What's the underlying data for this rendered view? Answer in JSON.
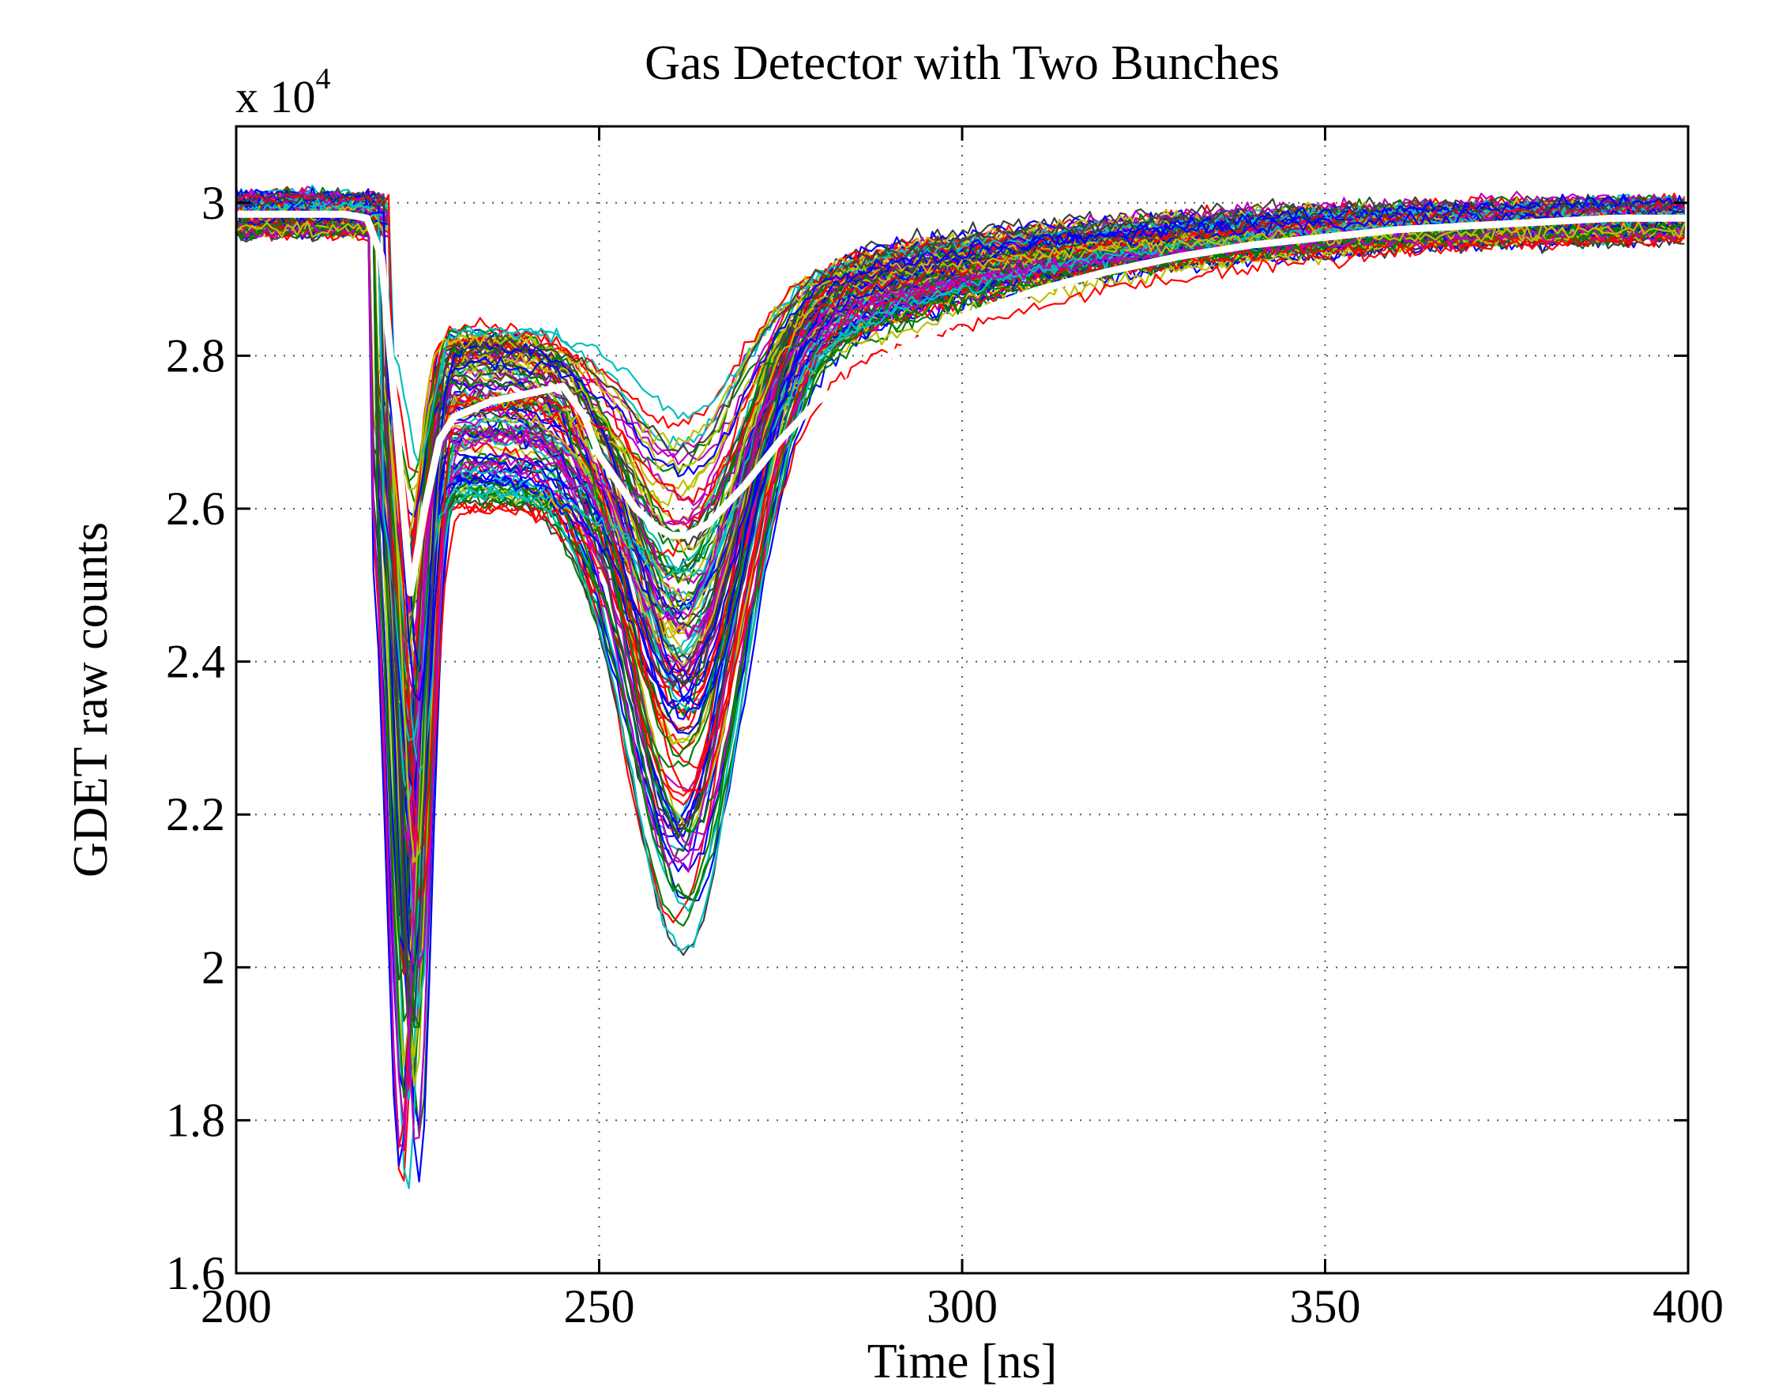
{
  "chart_data": {
    "type": "line",
    "title": "Gas Detector with Two Bunches",
    "xlabel": "Time [ns]",
    "ylabel": "GDET raw counts",
    "y_scale_label": {
      "base": "x 10",
      "exponent": "4"
    },
    "xlim": [
      200,
      400
    ],
    "ylim": [
      1.6,
      3.1
    ],
    "x_ticks": [
      200,
      250,
      300,
      350,
      400
    ],
    "x_tick_labels": [
      "200",
      "250",
      "300",
      "350",
      "400"
    ],
    "y_ticks": [
      1.6,
      1.8,
      2.0,
      2.2,
      2.4,
      2.6,
      2.8,
      3.0
    ],
    "y_tick_labels": [
      "1.6",
      "1.8",
      "2",
      "2.2",
      "2.4",
      "2.6",
      "2.8",
      "3"
    ],
    "grid": true,
    "grid_style": "dotted",
    "legend": "none",
    "shot_trace_count": 120,
    "shot_colors": [
      "#0000ff",
      "#008000",
      "#ff0000",
      "#00bfbf",
      "#bf00bf",
      "#bfbf00",
      "#404040"
    ],
    "mean_trace_color": "#ffffff",
    "series": [
      {
        "role": "mean",
        "x": [
          200,
          215,
          218,
          220,
          222,
          224,
          226,
          228,
          230,
          235,
          240,
          245,
          248,
          250,
          255,
          258,
          260,
          262,
          265,
          270,
          275,
          280,
          290,
          300,
          310,
          320,
          330,
          340,
          350,
          360,
          370,
          380,
          390,
          400
        ],
        "y": [
          2.985,
          2.985,
          2.98,
          2.93,
          2.72,
          2.49,
          2.6,
          2.69,
          2.72,
          2.74,
          2.75,
          2.76,
          2.72,
          2.67,
          2.6,
          2.575,
          2.565,
          2.565,
          2.58,
          2.63,
          2.69,
          2.74,
          2.8,
          2.85,
          2.885,
          2.91,
          2.93,
          2.945,
          2.955,
          2.965,
          2.97,
          2.975,
          2.98,
          2.98
        ]
      }
    ],
    "shot_envelope": {
      "x": [
        200,
        219,
        224,
        232,
        246,
        262,
        300,
        350,
        400
      ],
      "y_min": [
        2.96,
        2.96,
        1.6,
        2.56,
        2.61,
        2.22,
        2.76,
        2.92,
        2.95
      ],
      "y_max": [
        3.02,
        3.02,
        2.85,
        2.85,
        2.92,
        2.76,
        2.92,
        3.0,
        3.02
      ]
    }
  }
}
